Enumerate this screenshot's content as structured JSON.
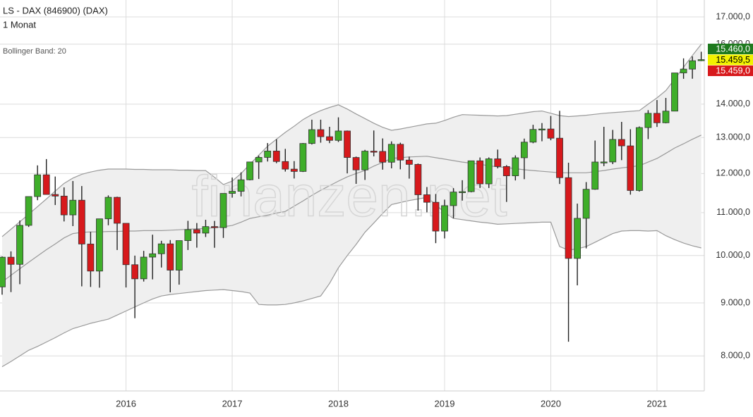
{
  "chart_data": {
    "type": "candlestick",
    "title": "LS - DAX (846900) (DAX)",
    "subtitle": "1 Monat",
    "indicator_label": "Bollinger Band: 20",
    "watermark": "finanzen.net",
    "log_scale": true,
    "grid": true,
    "up_color": "#3fae2a",
    "down_color": "#d7191c",
    "band_fill": "#efefef",
    "band_line_color": "#9a9a9a",
    "ylim": [
      7400,
      17650
    ],
    "yticks": [
      {
        "value": 8000,
        "label": "8.000,0"
      },
      {
        "value": 9000,
        "label": "9.000,0"
      },
      {
        "value": 10000,
        "label": "10.000,0"
      },
      {
        "value": 11000,
        "label": "11.000,0"
      },
      {
        "value": 12000,
        "label": "12.000,0"
      },
      {
        "value": 13000,
        "label": "13.000,0"
      },
      {
        "value": 14000,
        "label": "14.000,0"
      },
      {
        "value": 16000,
        "label": "16.000,0"
      },
      {
        "value": 17000,
        "label": "17.000,0"
      }
    ],
    "categories": [
      null,
      null,
      null,
      null,
      null,
      null,
      null,
      null,
      null,
      null,
      null,
      null,
      null,
      null,
      "2016",
      null,
      null,
      null,
      null,
      null,
      null,
      null,
      null,
      null,
      null,
      null,
      "2017",
      null,
      null,
      null,
      null,
      null,
      null,
      null,
      null,
      null,
      null,
      null,
      "2018",
      null,
      null,
      null,
      null,
      null,
      null,
      null,
      null,
      null,
      null,
      null,
      "2019",
      null,
      null,
      null,
      null,
      null,
      null,
      null,
      null,
      null,
      null,
      null,
      "2020",
      null,
      null,
      null,
      null,
      null,
      null,
      null,
      null,
      null,
      null,
      null,
      "2021",
      null,
      null,
      null,
      null,
      null
    ],
    "open": [
      9326,
      9963,
      9806,
      10694,
      11401,
      11966,
      11454,
      11413,
      10945,
      11309,
      10259,
      9660,
      10850,
      11382,
      10743,
      9798,
      9495,
      9965,
      10039,
      10263,
      9680,
      10337,
      10593,
      10511,
      10665,
      10640,
      11481,
      11535,
      11834,
      12313,
      12438,
      12615,
      12325,
      12118,
      12056,
      12829,
      13230,
      13024,
      12918,
      13190,
      12436,
      12097,
      12612,
      12605,
      12306,
      12806,
      12364,
      12247,
      11447,
      11257,
      10559,
      11173,
      11516,
      11526,
      12344,
      11727,
      12399,
      12189,
      11939,
      12428,
      12867,
      13236,
      13249,
      12981,
      11890,
      9936,
      10862,
      11587,
      12311,
      12313,
      12945,
      12761,
      11556,
      13291,
      13719,
      13433,
      13786,
      15008,
      15136,
      15421
    ],
    "high": [
      9980,
      10093,
      10810,
      11401,
      12219,
      12391,
      11920,
      11635,
      11802,
      11670,
      10540,
      10850,
      11430,
      11397,
      10743,
      9998,
      10104,
      10474,
      10333,
      10350,
      10337,
      10802,
      10749,
      10827,
      10800,
      11481,
      11893,
      12031,
      12313,
      12486,
      12841,
      12951,
      12676,
      12336,
      12842,
      13526,
      13526,
      13314,
      13597,
      13204,
      12461,
      12648,
      13205,
      12974,
      12889,
      12851,
      12458,
      12269,
      11645,
      11466,
      11323,
      11616,
      11823,
      12345,
      12436,
      12438,
      12656,
      12225,
      12494,
      12969,
      13374,
      13425,
      13640,
      13795,
      12293,
      11223,
      11774,
      12913,
      13313,
      13222,
      13460,
      13242,
      13324,
      13815,
      14131,
      14197,
      15008,
      15502,
      15569,
      15732
    ],
    "low": [
      9166,
      9219,
      9382,
      10656,
      11309,
      11454,
      11188,
      10787,
      10676,
      9338,
      9325,
      9310,
      10696,
      10123,
      9314,
      8699,
      9438,
      9484,
      9737,
      9214,
      9373,
      10123,
      10176,
      10420,
      10174,
      10399,
      11373,
      11404,
      11820,
      11855,
      12325,
      12279,
      12052,
      11868,
      12041,
      12800,
      12852,
      12839,
      12871,
      12003,
      11727,
      11830,
      12466,
      12104,
      12139,
      12113,
      11865,
      11051,
      11009,
      10279,
      10387,
      10864,
      11299,
      11508,
      11620,
      11620,
      12138,
      11266,
      11817,
      11850,
      12836,
      12892,
      12921,
      11724,
      8256,
      9358,
      10160,
      11574,
      12199,
      12254,
      12362,
      11450,
      11528,
      12955,
      13310,
      13417,
      13783,
      14813,
      14816,
      15407
    ],
    "close": [
      9963,
      9806,
      10694,
      11401,
      11966,
      11454,
      11413,
      10945,
      11309,
      10259,
      9660,
      10850,
      11382,
      10743,
      9798,
      9495,
      9965,
      10039,
      10263,
      9680,
      10337,
      10593,
      10511,
      10665,
      10640,
      11481,
      11535,
      11834,
      12313,
      12438,
      12615,
      12325,
      12118,
      12056,
      12829,
      13230,
      13024,
      12918,
      13190,
      12436,
      12097,
      12612,
      12605,
      12306,
      12806,
      12364,
      12247,
      11447,
      11257,
      10559,
      11173,
      11516,
      11526,
      12344,
      11727,
      12399,
      12189,
      11939,
      12428,
      12867,
      13236,
      13249,
      12981,
      11890,
      9936,
      10862,
      11587,
      12311,
      12313,
      12945,
      12761,
      11556,
      13291,
      13719,
      13433,
      13786,
      15008,
      15136,
      15421,
      15459
    ],
    "band_upper": [
      10430,
      10600,
      10780,
      10960,
      11150,
      11340,
      11540,
      11740,
      11880,
      11980,
      12040,
      12090,
      12120,
      12120,
      12120,
      12110,
      12110,
      12100,
      12100,
      12100,
      12090,
      12090,
      12080,
      12080,
      11900,
      11710,
      11800,
      12000,
      12250,
      12500,
      12750,
      12950,
      13150,
      13330,
      13530,
      13680,
      13800,
      13900,
      13980,
      13850,
      13700,
      13560,
      13420,
      13300,
      13210,
      13250,
      13300,
      13350,
      13400,
      13420,
      13500,
      13600,
      13680,
      13670,
      13660,
      13650,
      13640,
      13650,
      13690,
      13730,
      13770,
      13790,
      13720,
      13650,
      13620,
      13640,
      13660,
      13690,
      13720,
      13740,
      13760,
      13780,
      13800,
      14000,
      14200,
      14430,
      14800,
      15200,
      15600,
      16000
    ],
    "band_middle": [
      9430,
      9570,
      9710,
      9850,
      9990,
      10130,
      10260,
      10400,
      10500,
      10530,
      10540,
      10540,
      10550,
      10550,
      10560,
      10560,
      10570,
      10570,
      10570,
      10580,
      10590,
      10600,
      10610,
      10620,
      10640,
      10660,
      10690,
      10770,
      10860,
      10900,
      10940,
      10990,
      11030,
      11160,
      11290,
      11430,
      11560,
      11680,
      11800,
      11910,
      12000,
      12080,
      12200,
      12300,
      12410,
      12430,
      12450,
      12460,
      12470,
      12430,
      12390,
      12350,
      12310,
      12280,
      12250,
      12210,
      12180,
      12160,
      12130,
      12100,
      12080,
      12060,
      12040,
      12020,
      12020,
      12020,
      12020,
      12050,
      12080,
      12120,
      12150,
      12180,
      12210,
      12310,
      12410,
      12550,
      12700,
      12820,
      12950,
      13070
    ],
    "band_lower": [
      7810,
      7900,
      8000,
      8100,
      8170,
      8250,
      8330,
      8420,
      8500,
      8550,
      8600,
      8640,
      8680,
      8760,
      8840,
      8920,
      9000,
      9080,
      9140,
      9170,
      9190,
      9210,
      9230,
      9250,
      9260,
      9270,
      9250,
      9230,
      9200,
      8970,
      8960,
      8960,
      8970,
      9000,
      9040,
      9090,
      9140,
      9400,
      9730,
      10000,
      10250,
      10530,
      10750,
      10980,
      11200,
      11250,
      11300,
      11340,
      11380,
      11200,
      11000,
      10860,
      10830,
      10800,
      10770,
      10750,
      10720,
      10730,
      10740,
      10750,
      10760,
      10770,
      10770,
      10200,
      10120,
      10150,
      10200,
      10300,
      10400,
      10500,
      10560,
      10570,
      10570,
      10560,
      10570,
      10450,
      10360,
      10280,
      10220,
      10170
    ],
    "price_labels": [
      {
        "label": "15.460,0",
        "color": "#1f7a1f",
        "text_color": "#ffffff"
      },
      {
        "label": "15.459,5",
        "color": "#f2f200",
        "text_color": "#000000"
      },
      {
        "label": "15.459,0",
        "color": "#d7191c",
        "text_color": "#ffffff"
      }
    ]
  }
}
